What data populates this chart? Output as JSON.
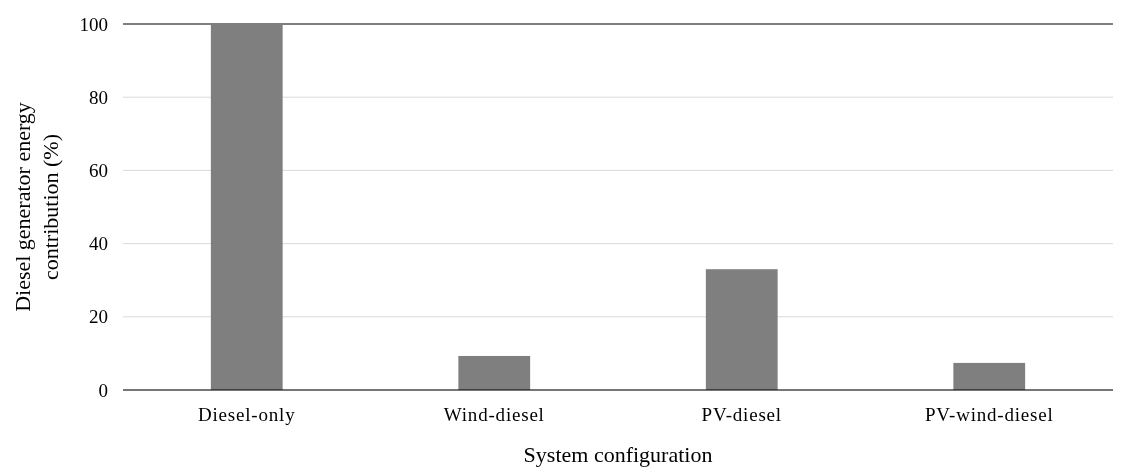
{
  "chart_data": {
    "type": "bar",
    "xlabel": "System configuration",
    "ylabel": "Diesel generator energy contribution (%)",
    "categories": [
      "Diesel-only",
      "Wind-diesel",
      "PV-diesel",
      "PV-wind-diesel"
    ],
    "series": [
      {
        "color": "#7f7f7f",
        "values": [
          100,
          9.3,
          33,
          7.4
        ]
      }
    ],
    "ylim": [
      0,
      100
    ],
    "yticks": [
      0,
      20,
      40,
      60,
      80,
      100
    ],
    "grid": "y"
  }
}
